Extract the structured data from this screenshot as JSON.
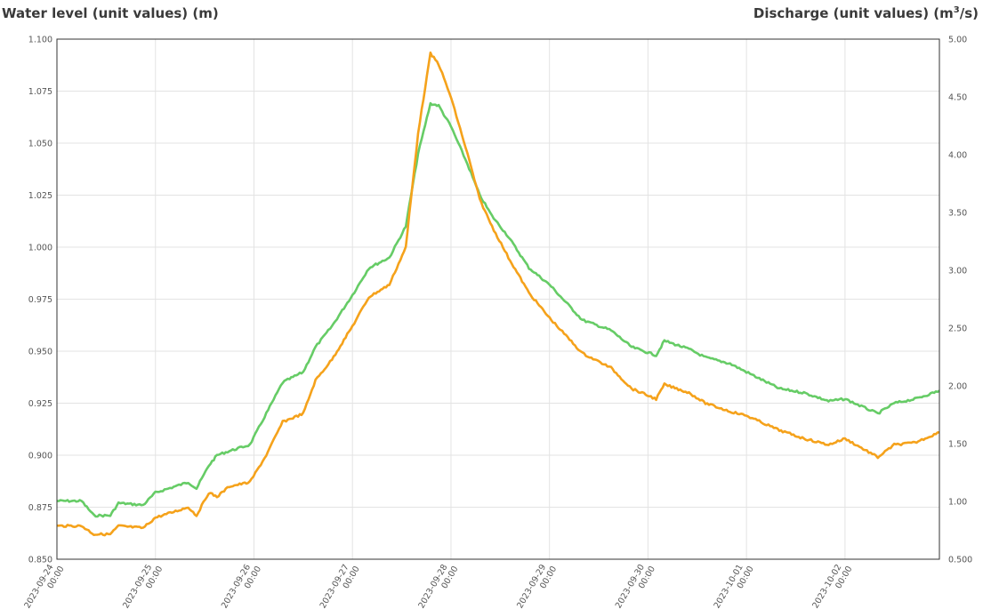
{
  "chart_data": {
    "type": "line",
    "y_left_title": "Water level (unit values) (m)",
    "y_right_title_main": "Discharge (unit values) (m",
    "y_right_title_sup": "3",
    "y_right_title_end": "/s)",
    "ylim_left": [
      0.85,
      1.1
    ],
    "ylim_right": [
      0.5,
      5.0
    ],
    "yticks_left": [
      "1.100",
      "1.075",
      "1.050",
      "1.025",
      "1.000",
      "0.975",
      "0.950",
      "0.925",
      "0.900",
      "0.875",
      "0.850"
    ],
    "yticks_right": [
      "5.00",
      "4.50",
      "4.00",
      "3.50",
      "3.00",
      "2.50",
      "2.00",
      "1.50",
      "1.00",
      "0.500"
    ],
    "xticks": [
      {
        "date": "2023-09-24",
        "time": "00:00"
      },
      {
        "date": "2023-09-25",
        "time": "00:00"
      },
      {
        "date": "2023-09-26",
        "time": "00:00"
      },
      {
        "date": "2023-09-27",
        "time": "00:00"
      },
      {
        "date": "2023-09-28",
        "time": "00:00"
      },
      {
        "date": "2023-09-29",
        "time": "00:00"
      },
      {
        "date": "2023-09-30",
        "time": "00:00"
      },
      {
        "date": "2023-10-01",
        "time": "00:00"
      },
      {
        "date": "2023-10-02",
        "time": "00:00"
      }
    ],
    "xlim": [
      "2023-09-24 00:00",
      "2023-10-02 23:00"
    ],
    "grid": true,
    "series": [
      {
        "axis": "left",
        "color": "#66cc66",
        "points": [
          [
            "2023-09-24 00:00",
            0.878
          ],
          [
            "2023-09-24 06:00",
            0.878
          ],
          [
            "2023-09-24 09:00",
            0.871
          ],
          [
            "2023-09-24 13:00",
            0.871
          ],
          [
            "2023-09-24 15:00",
            0.877
          ],
          [
            "2023-09-24 21:00",
            0.876
          ],
          [
            "2023-09-25 00:00",
            0.882
          ],
          [
            "2023-09-25 08:00",
            0.887
          ],
          [
            "2023-09-25 10:00",
            0.884
          ],
          [
            "2023-09-25 13:00",
            0.895
          ],
          [
            "2023-09-25 15:00",
            0.9
          ],
          [
            "2023-09-25 18:00",
            0.902
          ],
          [
            "2023-09-25 23:00",
            0.905
          ],
          [
            "2023-09-26 03:00",
            0.92
          ],
          [
            "2023-09-26 07:00",
            0.935
          ],
          [
            "2023-09-26 12:00",
            0.94
          ],
          [
            "2023-09-26 15:00",
            0.952
          ],
          [
            "2023-09-26 19:00",
            0.962
          ],
          [
            "2023-09-27 00:00",
            0.977
          ],
          [
            "2023-09-27 04:00",
            0.99
          ],
          [
            "2023-09-27 09:00",
            0.995
          ],
          [
            "2023-09-27 13:00",
            1.01
          ],
          [
            "2023-09-27 16:00",
            1.045
          ],
          [
            "2023-09-27 19:00",
            1.069
          ],
          [
            "2023-09-27 21:00",
            1.068
          ],
          [
            "2023-09-28 00:00",
            1.058
          ],
          [
            "2023-09-28 04:00",
            1.04
          ],
          [
            "2023-09-28 07:00",
            1.025
          ],
          [
            "2023-09-28 10:00",
            1.015
          ],
          [
            "2023-09-28 14:00",
            1.005
          ],
          [
            "2023-09-28 19:00",
            0.99
          ],
          [
            "2023-09-29 00:00",
            0.982
          ],
          [
            "2023-09-29 08:00",
            0.965
          ],
          [
            "2023-09-29 15:00",
            0.96
          ],
          [
            "2023-09-29 20:00",
            0.952
          ],
          [
            "2023-09-30 02:00",
            0.948
          ],
          [
            "2023-09-30 04:00",
            0.955
          ],
          [
            "2023-09-30 10:00",
            0.951
          ],
          [
            "2023-09-30 14:00",
            0.947
          ],
          [
            "2023-09-30 20:00",
            0.944
          ],
          [
            "2023-10-01 00:00",
            0.94
          ],
          [
            "2023-10-01 08:00",
            0.932
          ],
          [
            "2023-10-01 14:00",
            0.93
          ],
          [
            "2023-10-01 20:00",
            0.926
          ],
          [
            "2023-10-02 00:00",
            0.927
          ],
          [
            "2023-10-02 08:00",
            0.92
          ],
          [
            "2023-10-02 12:00",
            0.925
          ],
          [
            "2023-10-02 17:00",
            0.927
          ],
          [
            "2023-10-02 23:00",
            0.931
          ]
        ]
      },
      {
        "axis": "left",
        "color": "#f5a21b",
        "points": [
          [
            "2023-09-24 00:00",
            0.866
          ],
          [
            "2023-09-24 06:00",
            0.866
          ],
          [
            "2023-09-24 09:00",
            0.862
          ],
          [
            "2023-09-24 13:00",
            0.862
          ],
          [
            "2023-09-24 15:00",
            0.866
          ],
          [
            "2023-09-24 21:00",
            0.865
          ],
          [
            "2023-09-25 00:00",
            0.87
          ],
          [
            "2023-09-25 08:00",
            0.875
          ],
          [
            "2023-09-25 10:00",
            0.871
          ],
          [
            "2023-09-25 13:00",
            0.882
          ],
          [
            "2023-09-25 15:00",
            0.88
          ],
          [
            "2023-09-25 18:00",
            0.885
          ],
          [
            "2023-09-25 23:00",
            0.887
          ],
          [
            "2023-09-26 03:00",
            0.9
          ],
          [
            "2023-09-26 07:00",
            0.916
          ],
          [
            "2023-09-26 12:00",
            0.92
          ],
          [
            "2023-09-26 15:00",
            0.936
          ],
          [
            "2023-09-26 19:00",
            0.946
          ],
          [
            "2023-09-27 00:00",
            0.962
          ],
          [
            "2023-09-27 04:00",
            0.976
          ],
          [
            "2023-09-27 09:00",
            0.982
          ],
          [
            "2023-09-27 13:00",
            1.0
          ],
          [
            "2023-09-27 16:00",
            1.055
          ],
          [
            "2023-09-27 19:00",
            1.093
          ],
          [
            "2023-09-27 21:00",
            1.088
          ],
          [
            "2023-09-28 00:00",
            1.072
          ],
          [
            "2023-09-28 04:00",
            1.045
          ],
          [
            "2023-09-28 07:00",
            1.023
          ],
          [
            "2023-09-28 10:00",
            1.01
          ],
          [
            "2023-09-28 14:00",
            0.995
          ],
          [
            "2023-09-28 19:00",
            0.978
          ],
          [
            "2023-09-29 00:00",
            0.966
          ],
          [
            "2023-09-29 08:00",
            0.949
          ],
          [
            "2023-09-29 15:00",
            0.942
          ],
          [
            "2023-09-29 20:00",
            0.932
          ],
          [
            "2023-09-30 02:00",
            0.927
          ],
          [
            "2023-09-30 04:00",
            0.934
          ],
          [
            "2023-09-30 10:00",
            0.93
          ],
          [
            "2023-09-30 14:00",
            0.925
          ],
          [
            "2023-09-30 20:00",
            0.921
          ],
          [
            "2023-10-01 00:00",
            0.919
          ],
          [
            "2023-10-01 08:00",
            0.912
          ],
          [
            "2023-10-01 14:00",
            0.908
          ],
          [
            "2023-10-01 20:00",
            0.905
          ],
          [
            "2023-10-02 00:00",
            0.908
          ],
          [
            "2023-10-02 08:00",
            0.899
          ],
          [
            "2023-10-02 12:00",
            0.905
          ],
          [
            "2023-10-02 17:00",
            0.906
          ],
          [
            "2023-10-02 23:00",
            0.911
          ]
        ]
      }
    ]
  }
}
